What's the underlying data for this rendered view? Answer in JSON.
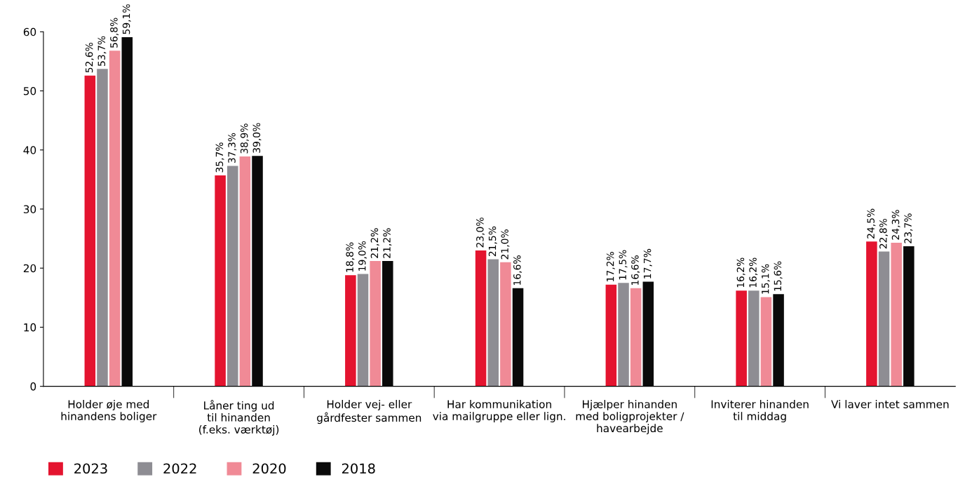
{
  "chart_data": {
    "type": "bar",
    "categories": [
      "Holder øje med\nhinandens boliger",
      "Låner ting ud\ntil hinanden\n(f.eks. værktøj)",
      "Holder vej- eller\ngårdfester sammen",
      "Har kommunikation\nvia mailgruppe eller lign.",
      "Hjælper hinanden\nmed boligprojekter /\nhavearbejde",
      "Inviterer hinanden\ntil middag",
      "Vi laver intet sammen"
    ],
    "series": [
      {
        "name": "2023",
        "color": "#e4142f",
        "values": [
          52.6,
          35.7,
          18.8,
          23.0,
          17.2,
          16.2,
          24.5
        ],
        "value_labels": [
          "52,6%",
          "35,7%",
          "18,8%",
          "23,0%",
          "17,2%",
          "16,2%",
          "24,5%"
        ]
      },
      {
        "name": "2022",
        "color": "#8e8d93",
        "values": [
          53.7,
          37.3,
          19.0,
          21.5,
          17.5,
          16.2,
          22.8
        ],
        "value_labels": [
          "53,7%",
          "37,3%",
          "19,0%",
          "21,5%",
          "17,5%",
          "16,2%",
          "22,8%"
        ]
      },
      {
        "name": "2020",
        "color": "#f08a96",
        "values": [
          56.8,
          38.9,
          21.2,
          21.0,
          16.6,
          15.1,
          24.3
        ],
        "value_labels": [
          "56,8%",
          "38,9%",
          "21,2%",
          "21,0%",
          "16,6%",
          "15,1%",
          "24,3%"
        ]
      },
      {
        "name": "2018",
        "color": "#0a0a0a",
        "values": [
          59.1,
          39.0,
          21.2,
          16.6,
          17.7,
          15.6,
          23.7
        ],
        "value_labels": [
          "59,1%",
          "39,0%",
          "21,2%",
          "16,6%",
          "17,7%",
          "15,6%",
          "23,7%"
        ]
      }
    ],
    "ylim": [
      0,
      60
    ],
    "yticks": [
      0,
      10,
      20,
      30,
      40,
      50,
      60
    ],
    "grid": false,
    "legend": "bottom left"
  }
}
